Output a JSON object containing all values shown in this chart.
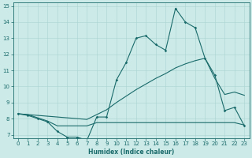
{
  "xlabel": "Humidex (Indice chaleur)",
  "xlim": [
    -0.5,
    23.5
  ],
  "ylim": [
    6.8,
    15.2
  ],
  "yticks": [
    7,
    8,
    9,
    10,
    11,
    12,
    13,
    14,
    15
  ],
  "xticks": [
    0,
    1,
    2,
    3,
    4,
    5,
    6,
    7,
    8,
    9,
    10,
    11,
    12,
    13,
    14,
    15,
    16,
    17,
    18,
    19,
    20,
    21,
    22,
    23
  ],
  "bg_color": "#cceae8",
  "line_color": "#1a6b6b",
  "grid_color": "#aad4d0",
  "series_max": {
    "x": [
      0,
      1,
      2,
      3,
      4,
      5,
      6,
      7,
      8,
      9,
      10,
      11,
      12,
      13,
      14,
      15,
      16,
      17,
      18,
      19,
      20,
      21,
      22,
      23
    ],
    "y": [
      8.3,
      8.2,
      8.0,
      7.8,
      7.2,
      6.85,
      6.85,
      6.65,
      8.1,
      8.1,
      10.4,
      11.5,
      13.0,
      13.15,
      12.6,
      12.25,
      14.85,
      14.0,
      13.65,
      11.75,
      10.7,
      8.5,
      8.7,
      7.55
    ]
  },
  "series_mean": {
    "x": [
      0,
      1,
      2,
      3,
      4,
      5,
      6,
      7,
      8,
      9,
      10,
      11,
      12,
      13,
      14,
      15,
      16,
      17,
      18,
      19,
      20,
      21,
      22,
      23
    ],
    "y": [
      8.3,
      8.25,
      8.2,
      8.15,
      8.1,
      8.05,
      8.0,
      7.95,
      8.25,
      8.55,
      9.0,
      9.4,
      9.8,
      10.15,
      10.5,
      10.8,
      11.15,
      11.4,
      11.6,
      11.75,
      10.5,
      9.5,
      9.65,
      9.45
    ]
  },
  "series_min": {
    "x": [
      0,
      1,
      2,
      3,
      4,
      5,
      6,
      7,
      8,
      9,
      10,
      11,
      12,
      13,
      14,
      15,
      16,
      17,
      18,
      19,
      20,
      21,
      22,
      23
    ],
    "y": [
      8.3,
      8.25,
      8.05,
      7.85,
      7.55,
      7.55,
      7.55,
      7.55,
      7.75,
      7.75,
      7.75,
      7.75,
      7.75,
      7.75,
      7.75,
      7.75,
      7.75,
      7.75,
      7.75,
      7.75,
      7.75,
      7.75,
      7.75,
      7.6
    ]
  }
}
